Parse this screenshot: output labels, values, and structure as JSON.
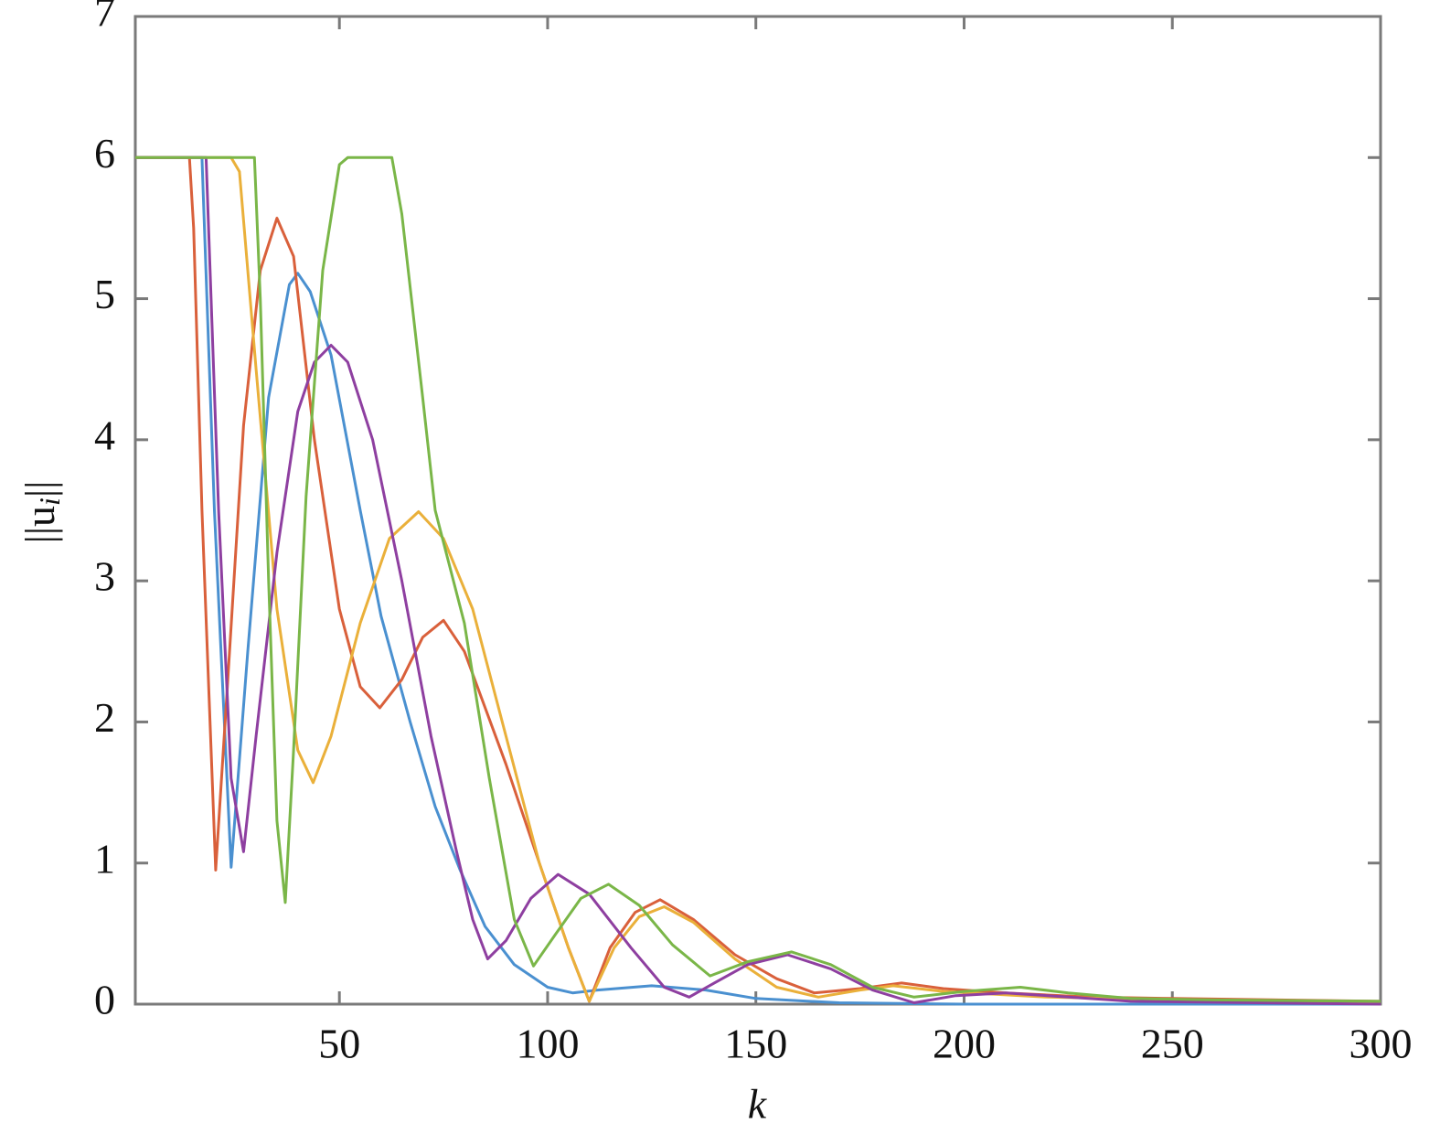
{
  "chart_data": {
    "type": "line",
    "xlabel": "k",
    "ylabel": {
      "base": "||u",
      "sub": "i",
      "end": "||"
    },
    "xlim": [
      1,
      300
    ],
    "ylim": [
      0,
      7
    ],
    "xticks": [
      50,
      100,
      150,
      200,
      250,
      300
    ],
    "yticks": [
      0,
      1,
      2,
      3,
      4,
      5,
      6,
      7
    ],
    "grid": false,
    "series": [
      {
        "color": "#4a90d0",
        "x": [
          1,
          17,
          20,
          24,
          28,
          33,
          38,
          40,
          43,
          48,
          55,
          60,
          67,
          73,
          79,
          85,
          92,
          100,
          106,
          112,
          125,
          138,
          150,
          170,
          200,
          300
        ],
        "values": [
          6,
          6,
          3.5,
          0.97,
          2.5,
          4.3,
          5.1,
          5.18,
          5.05,
          4.6,
          3.5,
          2.75,
          2,
          1.4,
          0.95,
          0.55,
          0.28,
          0.12,
          0.08,
          0.1,
          0.13,
          0.1,
          0.04,
          0.01,
          0,
          0
        ]
      },
      {
        "color": "#d9603b",
        "x": [
          1,
          14,
          15,
          17,
          20.3,
          23,
          27,
          31,
          35,
          39,
          44,
          50,
          55,
          59.7,
          65,
          70,
          75,
          80,
          90,
          98,
          105,
          110,
          115,
          121,
          127,
          135,
          145,
          155,
          164,
          175,
          185,
          195,
          210,
          230,
          250,
          300
        ],
        "values": [
          6,
          6,
          5.5,
          3.5,
          0.95,
          2.2,
          4.1,
          5.2,
          5.57,
          5.3,
          4.0,
          2.8,
          2.25,
          2.1,
          2.3,
          2.6,
          2.72,
          2.5,
          1.7,
          1,
          0.4,
          0.02,
          0.4,
          0.65,
          0.74,
          0.6,
          0.35,
          0.18,
          0.08,
          0.11,
          0.15,
          0.11,
          0.08,
          0.05,
          0.04,
          0.02
        ]
      },
      {
        "color": "#eab03a",
        "x": [
          1,
          24,
          26,
          30,
          35,
          40,
          43.7,
          48,
          55,
          62,
          69,
          75,
          82,
          90,
          98,
          105,
          110,
          116,
          122,
          128,
          135,
          145,
          155,
          165,
          175,
          183,
          195,
          220,
          250,
          300
        ],
        "values": [
          6,
          6,
          5.9,
          4.5,
          2.8,
          1.8,
          1.57,
          1.9,
          2.7,
          3.3,
          3.49,
          3.3,
          2.8,
          1.9,
          1,
          0.4,
          0.02,
          0.4,
          0.62,
          0.69,
          0.58,
          0.32,
          0.12,
          0.05,
          0.1,
          0.13,
          0.09,
          0.05,
          0.03,
          0.01
        ]
      },
      {
        "color": "#8e3fa0",
        "x": [
          1,
          18,
          21,
          24,
          27,
          30,
          35,
          40,
          44,
          48,
          52,
          58,
          65,
          72,
          78,
          82,
          85.6,
          90,
          96,
          102.5,
          110,
          120,
          128,
          134,
          140,
          148,
          157.6,
          168,
          178,
          188,
          198,
          210,
          225,
          240,
          300
        ],
        "values": [
          6,
          6,
          3.5,
          1.6,
          1.08,
          1.9,
          3.2,
          4.2,
          4.55,
          4.67,
          4.55,
          4.0,
          3.0,
          1.9,
          1.1,
          0.6,
          0.32,
          0.45,
          0.75,
          0.92,
          0.78,
          0.4,
          0.12,
          0.05,
          0.15,
          0.28,
          0.35,
          0.25,
          0.1,
          0.01,
          0.06,
          0.08,
          0.05,
          0.02,
          0
        ]
      },
      {
        "color": "#7ab648",
        "x": [
          1,
          29.6,
          31,
          33,
          35,
          37,
          39,
          42,
          46,
          50,
          52,
          62.6,
          65,
          70,
          73,
          80,
          86,
          92,
          96.6,
          102,
          108,
          114.6,
          122,
          130,
          139,
          148,
          158.6,
          168,
          178,
          188,
          200,
          213.5,
          225,
          240,
          260,
          300
        ],
        "values": [
          6,
          6,
          5,
          3,
          1.3,
          0.72,
          1.8,
          3.6,
          5.2,
          5.95,
          6,
          6,
          5.6,
          4.3,
          3.5,
          2.7,
          1.6,
          0.6,
          0.27,
          0.5,
          0.75,
          0.85,
          0.7,
          0.42,
          0.2,
          0.3,
          0.37,
          0.28,
          0.12,
          0.05,
          0.09,
          0.12,
          0.08,
          0.04,
          0.03,
          0.02
        ]
      }
    ]
  }
}
